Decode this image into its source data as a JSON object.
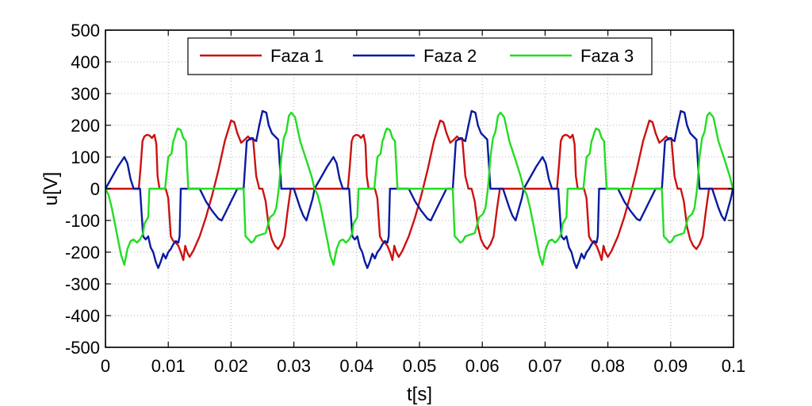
{
  "chart_data": {
    "type": "line",
    "title": "",
    "xlabel": "t[s]",
    "ylabel": "u[V]",
    "xlim": [
      0,
      0.1
    ],
    "ylim": [
      -500,
      500
    ],
    "xticks": [
      0,
      0.01,
      0.02,
      0.03,
      0.04,
      0.05,
      0.06,
      0.07,
      0.08,
      0.09,
      0.1
    ],
    "xtick_labels": [
      "0",
      "0.01",
      "0.02",
      "0.03",
      "0.04",
      "0.05",
      "0.06",
      "0.07",
      "0.08",
      "0.09",
      "0.1"
    ],
    "yticks": [
      -500,
      -400,
      -300,
      -200,
      -100,
      0,
      100,
      200,
      300,
      400,
      500
    ],
    "ytick_labels": [
      "-500",
      "-400",
      "-300",
      "-200",
      "-100",
      "0",
      "100",
      "200",
      "300",
      "400",
      "500"
    ],
    "grid": true,
    "legend": "top-center",
    "period": 0.0333,
    "series": [
      {
        "name": "Faza 1",
        "color": "#cc1111",
        "values": [
          [
            0.0,
            0
          ],
          [
            0.005,
            0
          ],
          [
            0.0053,
            0
          ],
          [
            0.0056,
            70
          ],
          [
            0.0059,
            150
          ],
          [
            0.0062,
            165
          ],
          [
            0.0066,
            170
          ],
          [
            0.007,
            168
          ],
          [
            0.0074,
            160
          ],
          [
            0.0078,
            170
          ],
          [
            0.0081,
            140
          ],
          [
            0.0083,
            40
          ],
          [
            0.0086,
            0
          ],
          [
            0.0092,
            0
          ],
          [
            0.0096,
            0
          ],
          [
            0.01,
            -30
          ],
          [
            0.0104,
            -150
          ],
          [
            0.0108,
            -165
          ],
          [
            0.0112,
            -170
          ],
          [
            0.0116,
            -180
          ],
          [
            0.012,
            -200
          ],
          [
            0.0124,
            -225
          ],
          [
            0.0127,
            -180
          ],
          [
            0.013,
            -200
          ],
          [
            0.0134,
            -215
          ],
          [
            0.014,
            -195
          ],
          [
            0.015,
            -150
          ],
          [
            0.016,
            -90
          ],
          [
            0.017,
            -20
          ],
          [
            0.018,
            60
          ],
          [
            0.019,
            150
          ],
          [
            0.02,
            215
          ],
          [
            0.0205,
            210
          ],
          [
            0.021,
            175
          ],
          [
            0.0216,
            145
          ],
          [
            0.0222,
            155
          ],
          [
            0.0227,
            165
          ],
          [
            0.0231,
            155
          ],
          [
            0.0235,
            160
          ],
          [
            0.024,
            40
          ],
          [
            0.0245,
            0
          ],
          [
            0.025,
            0
          ],
          [
            0.0255,
            -40
          ],
          [
            0.026,
            -120
          ],
          [
            0.0265,
            -160
          ],
          [
            0.027,
            -180
          ],
          [
            0.0275,
            -190
          ],
          [
            0.028,
            -175
          ],
          [
            0.0285,
            -150
          ],
          [
            0.029,
            -70
          ],
          [
            0.0295,
            0
          ],
          [
            0.0333,
            0
          ]
        ]
      },
      {
        "name": "Faza 2",
        "color": "#0a1aa0",
        "values": [
          [
            0.0,
            0
          ],
          [
            0.001,
            35
          ],
          [
            0.002,
            70
          ],
          [
            0.003,
            100
          ],
          [
            0.0035,
            80
          ],
          [
            0.004,
            30
          ],
          [
            0.0045,
            0
          ],
          [
            0.005,
            0
          ],
          [
            0.0055,
            0
          ],
          [
            0.006,
            -150
          ],
          [
            0.0064,
            -160
          ],
          [
            0.0068,
            -150
          ],
          [
            0.0072,
            -185
          ],
          [
            0.0076,
            -200
          ],
          [
            0.008,
            -230
          ],
          [
            0.0084,
            -250
          ],
          [
            0.0088,
            -230
          ],
          [
            0.0092,
            -205
          ],
          [
            0.0096,
            -220
          ],
          [
            0.01,
            -200
          ],
          [
            0.0104,
            -190
          ],
          [
            0.0108,
            -175
          ],
          [
            0.0112,
            -165
          ],
          [
            0.0116,
            -170
          ],
          [
            0.0118,
            -150
          ],
          [
            0.012,
            0
          ],
          [
            0.015,
            0
          ],
          [
            0.016,
            -40
          ],
          [
            0.017,
            -70
          ],
          [
            0.018,
            -95
          ],
          [
            0.0185,
            -100
          ],
          [
            0.019,
            -80
          ],
          [
            0.02,
            -40
          ],
          [
            0.021,
            0
          ],
          [
            0.022,
            0
          ],
          [
            0.0225,
            150
          ],
          [
            0.0232,
            160
          ],
          [
            0.024,
            150
          ],
          [
            0.0245,
            200
          ],
          [
            0.025,
            245
          ],
          [
            0.0256,
            240
          ],
          [
            0.026,
            200
          ],
          [
            0.0265,
            175
          ],
          [
            0.027,
            165
          ],
          [
            0.0275,
            155
          ],
          [
            0.028,
            0
          ],
          [
            0.03,
            0
          ],
          [
            0.031,
            -60
          ],
          [
            0.0315,
            -85
          ],
          [
            0.032,
            -100
          ],
          [
            0.0325,
            -65
          ],
          [
            0.033,
            -30
          ],
          [
            0.0333,
            0
          ]
        ]
      },
      {
        "name": "Faza 3",
        "color": "#22dd22",
        "values": [
          [
            0.0,
            0
          ],
          [
            0.0005,
            -20
          ],
          [
            0.001,
            -60
          ],
          [
            0.0015,
            -110
          ],
          [
            0.002,
            -160
          ],
          [
            0.0025,
            -210
          ],
          [
            0.003,
            -240
          ],
          [
            0.0035,
            -190
          ],
          [
            0.004,
            -165
          ],
          [
            0.0045,
            -160
          ],
          [
            0.005,
            -170
          ],
          [
            0.0055,
            -160
          ],
          [
            0.006,
            -140
          ],
          [
            0.0062,
            -110
          ],
          [
            0.0065,
            -100
          ],
          [
            0.0068,
            -90
          ],
          [
            0.007,
            0
          ],
          [
            0.009,
            0
          ],
          [
            0.0095,
            0
          ],
          [
            0.01,
            100
          ],
          [
            0.0105,
            110
          ],
          [
            0.0108,
            150
          ],
          [
            0.011,
            160
          ],
          [
            0.0112,
            175
          ],
          [
            0.0115,
            190
          ],
          [
            0.012,
            185
          ],
          [
            0.0124,
            160
          ],
          [
            0.0128,
            150
          ],
          [
            0.0132,
            0
          ],
          [
            0.019,
            0
          ],
          [
            0.0195,
            0
          ],
          [
            0.02,
            0
          ],
          [
            0.0205,
            0
          ],
          [
            0.021,
            0
          ],
          [
            0.0215,
            0
          ],
          [
            0.022,
            0
          ],
          [
            0.0223,
            -150
          ],
          [
            0.0228,
            -160
          ],
          [
            0.0232,
            -170
          ],
          [
            0.0236,
            -165
          ],
          [
            0.024,
            -150
          ],
          [
            0.0255,
            -140
          ],
          [
            0.0262,
            -90
          ],
          [
            0.0268,
            -80
          ],
          [
            0.0272,
            -60
          ],
          [
            0.0276,
            0
          ],
          [
            0.028,
            100
          ],
          [
            0.0284,
            160
          ],
          [
            0.0288,
            180
          ],
          [
            0.0292,
            230
          ],
          [
            0.0296,
            240
          ],
          [
            0.0302,
            225
          ],
          [
            0.031,
            150
          ],
          [
            0.032,
            90
          ],
          [
            0.0328,
            40
          ],
          [
            0.0333,
            0
          ]
        ]
      }
    ]
  }
}
